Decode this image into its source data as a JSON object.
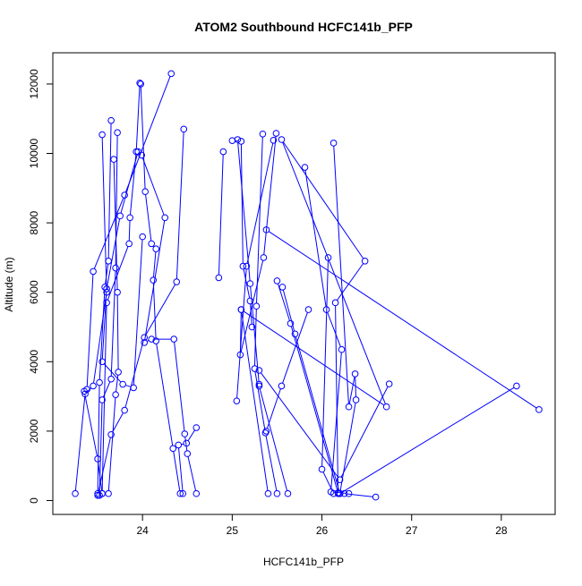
{
  "chart_data": {
    "type": "scatter",
    "title": "ATOM2 Southbound HCFC141b_PFP",
    "xlabel": "HCFC141b_PFP",
    "ylabel": "Altitude (m)",
    "xlim": [
      23.0,
      28.6
    ],
    "ylim": [
      -400,
      12900
    ],
    "xticks": [
      24,
      25,
      26,
      27,
      28
    ],
    "yticks": [
      0,
      2000,
      4000,
      6000,
      8000,
      10000,
      12000
    ],
    "color": "#0000ff",
    "connected": true,
    "point_shape": "open-circle",
    "grid": false,
    "legend": "none",
    "profiles": [
      [
        [
          23.55,
          10540
        ],
        [
          23.6,
          6000
        ],
        [
          23.45,
          3300
        ],
        [
          23.36,
          3070
        ],
        [
          23.25,
          200
        ]
      ],
      [
        [
          23.65,
          10950
        ],
        [
          23.62,
          6900
        ],
        [
          23.58,
          6150
        ],
        [
          23.52,
          3400
        ],
        [
          23.5,
          200
        ]
      ],
      [
        [
          23.72,
          10600
        ],
        [
          23.7,
          6700
        ],
        [
          23.65,
          3500
        ],
        [
          23.55,
          2900
        ],
        [
          23.52,
          150
        ]
      ],
      [
        [
          23.68,
          9830
        ],
        [
          23.72,
          6000
        ],
        [
          23.73,
          3700
        ],
        [
          23.7,
          3050
        ],
        [
          23.62,
          200
        ]
      ],
      [
        [
          23.97,
          12030
        ],
        [
          23.93,
          10050
        ],
        [
          23.86,
          8150
        ],
        [
          23.85,
          7400
        ],
        [
          23.6,
          5700
        ],
        [
          23.55,
          200
        ]
      ],
      [
        [
          23.98,
          12000
        ],
        [
          24.03,
          8900
        ],
        [
          24.1,
          7400
        ],
        [
          24.15,
          7250
        ],
        [
          24.12,
          6350
        ],
        [
          24.15,
          4600
        ],
        [
          24.34,
          1500
        ],
        [
          24.42,
          200
        ]
      ],
      [
        [
          23.99,
          9950
        ],
        [
          24.25,
          8150
        ],
        [
          24.02,
          4550
        ],
        [
          24.1,
          4650
        ],
        [
          24.35,
          4650
        ],
        [
          24.47,
          1920
        ],
        [
          24.5,
          1350
        ],
        [
          24.6,
          200
        ]
      ],
      [
        [
          24.32,
          12300
        ],
        [
          23.8,
          8800
        ],
        [
          23.45,
          6600
        ],
        [
          23.38,
          3200
        ],
        [
          23.35,
          3150
        ],
        [
          23.5,
          1200
        ],
        [
          23.55,
          200
        ]
      ],
      [
        [
          24.46,
          10700
        ],
        [
          24.38,
          6300
        ],
        [
          24.02,
          4700
        ],
        [
          23.8,
          2600
        ],
        [
          23.65,
          1900
        ],
        [
          23.5,
          150
        ]
      ],
      [
        [
          23.95,
          10050
        ],
        [
          23.75,
          8200
        ],
        [
          23.6,
          6100
        ],
        [
          23.55,
          4000
        ],
        [
          23.78,
          3350
        ],
        [
          23.9,
          3250
        ],
        [
          24.0,
          7600
        ]
      ],
      [
        [
          24.45,
          200
        ],
        [
          24.4,
          1600
        ],
        [
          24.49,
          1650
        ],
        [
          24.6,
          2100
        ]
      ],
      [
        [
          24.85,
          6420
        ],
        [
          24.9,
          10050
        ]
      ],
      [
        [
          25.0,
          10370
        ],
        [
          25.1,
          10350
        ],
        [
          25.12,
          6750
        ],
        [
          25.2,
          5750
        ],
        [
          25.22,
          5000
        ]
      ],
      [
        [
          25.06,
          10400
        ],
        [
          25.2,
          6250
        ],
        [
          25.3,
          3350
        ],
        [
          25.3,
          3300
        ],
        [
          25.62,
          200
        ]
      ],
      [
        [
          25.34,
          10560
        ],
        [
          25.27,
          5600
        ],
        [
          25.25,
          3800
        ],
        [
          25.37,
          1950
        ],
        [
          25.5,
          200
        ]
      ],
      [
        [
          25.46,
          10380
        ],
        [
          25.16,
          6750
        ],
        [
          25.05,
          2870
        ]
      ],
      [
        [
          25.49,
          10580
        ],
        [
          25.35,
          7000
        ],
        [
          25.09,
          4200
        ],
        [
          25.1,
          5500
        ],
        [
          25.4,
          200
        ]
      ],
      [
        [
          25.38,
          7800
        ],
        [
          28.42,
          2620
        ]
      ],
      [
        [
          25.5,
          6330
        ],
        [
          25.65,
          5100
        ],
        [
          26.18,
          220
        ],
        [
          26.25,
          200
        ],
        [
          26.6,
          100
        ]
      ],
      [
        [
          25.56,
          6150
        ],
        [
          25.7,
          4800
        ],
        [
          26.2,
          200
        ]
      ],
      [
        [
          25.85,
          5500
        ],
        [
          25.55,
          3300
        ],
        [
          25.38,
          2000
        ]
      ],
      [
        [
          25.81,
          9600
        ],
        [
          26.05,
          5500
        ],
        [
          26.22,
          4350
        ],
        [
          26.1,
          250
        ],
        [
          26.3,
          200
        ]
      ],
      [
        [
          26.07,
          7000
        ],
        [
          26.0,
          900
        ],
        [
          26.13,
          200
        ]
      ],
      [
        [
          26.13,
          10300
        ],
        [
          26.3,
          2700
        ],
        [
          26.37,
          3650
        ],
        [
          26.38,
          2900
        ],
        [
          26.2,
          200
        ]
      ],
      [
        [
          25.1,
          5500
        ],
        [
          26.72,
          2700
        ],
        [
          25.55,
          10400
        ],
        [
          26.48,
          6900
        ],
        [
          26.15,
          5700
        ],
        [
          26.18,
          200
        ]
      ],
      [
        [
          28.17,
          3300
        ],
        [
          26.2,
          200
        ]
      ],
      [
        [
          26.75,
          3360
        ],
        [
          26.2,
          600
        ],
        [
          25.3,
          3750
        ]
      ]
    ]
  }
}
